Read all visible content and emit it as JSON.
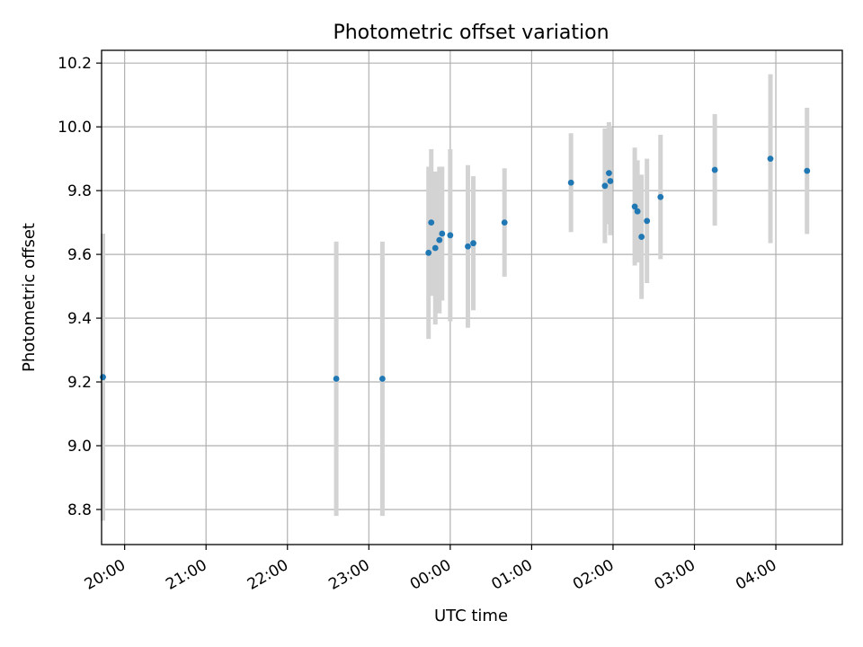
{
  "chart_data": {
    "type": "scatter",
    "title": "Photometric offset variation",
    "xlabel": "UTC time",
    "ylabel": "Photometric offset",
    "grid": true,
    "x_tick_labels": [
      "20:00",
      "21:00",
      "22:00",
      "23:00",
      "00:00",
      "01:00",
      "02:00",
      "03:00",
      "04:00"
    ],
    "y_tick_labels": [
      "8.8",
      "9.0",
      "9.2",
      "9.4",
      "9.6",
      "9.8",
      "10.0",
      "10.2"
    ],
    "xlim": [
      "19:43",
      "04:49"
    ],
    "ylim": [
      8.69,
      10.24
    ],
    "colors": {
      "points": "#1f77b4",
      "errorbars": "#d3d3d3",
      "grid": "#b0b0b0"
    },
    "points": [
      {
        "time": "19:44",
        "y": 9.215,
        "yerr": 0.45
      },
      {
        "time": "22:36",
        "y": 9.21,
        "yerr": 0.43
      },
      {
        "time": "23:10",
        "y": 9.21,
        "yerr": 0.43
      },
      {
        "time": "23:44",
        "y": 9.605,
        "yerr": 0.27
      },
      {
        "time": "23:46",
        "y": 9.7,
        "yerr": 0.23
      },
      {
        "time": "23:49",
        "y": 9.62,
        "yerr": 0.24
      },
      {
        "time": "23:52",
        "y": 9.645,
        "yerr": 0.23
      },
      {
        "time": "23:54",
        "y": 9.665,
        "yerr": 0.21
      },
      {
        "time": "00:00",
        "y": 9.66,
        "yerr": 0.27
      },
      {
        "time": "00:13",
        "y": 9.625,
        "yerr": 0.255
      },
      {
        "time": "00:17",
        "y": 9.635,
        "yerr": 0.21
      },
      {
        "time": "00:40",
        "y": 9.7,
        "yerr": 0.17
      },
      {
        "time": "01:29",
        "y": 9.825,
        "yerr": 0.155
      },
      {
        "time": "01:54",
        "y": 9.815,
        "yerr": 0.18
      },
      {
        "time": "01:57",
        "y": 9.855,
        "yerr": 0.16
      },
      {
        "time": "01:58",
        "y": 9.83,
        "yerr": 0.17
      },
      {
        "time": "02:16",
        "y": 9.75,
        "yerr": 0.185
      },
      {
        "time": "02:18",
        "y": 9.735,
        "yerr": 0.16
      },
      {
        "time": "02:21",
        "y": 9.655,
        "yerr": 0.195
      },
      {
        "time": "02:25",
        "y": 9.705,
        "yerr": 0.195
      },
      {
        "time": "02:35",
        "y": 9.78,
        "yerr": 0.195
      },
      {
        "time": "03:15",
        "y": 9.865,
        "yerr": 0.175
      },
      {
        "time": "03:56",
        "y": 9.9,
        "yerr": 0.265
      },
      {
        "time": "04:23",
        "y": 9.862,
        "yerr": 0.198
      }
    ]
  }
}
